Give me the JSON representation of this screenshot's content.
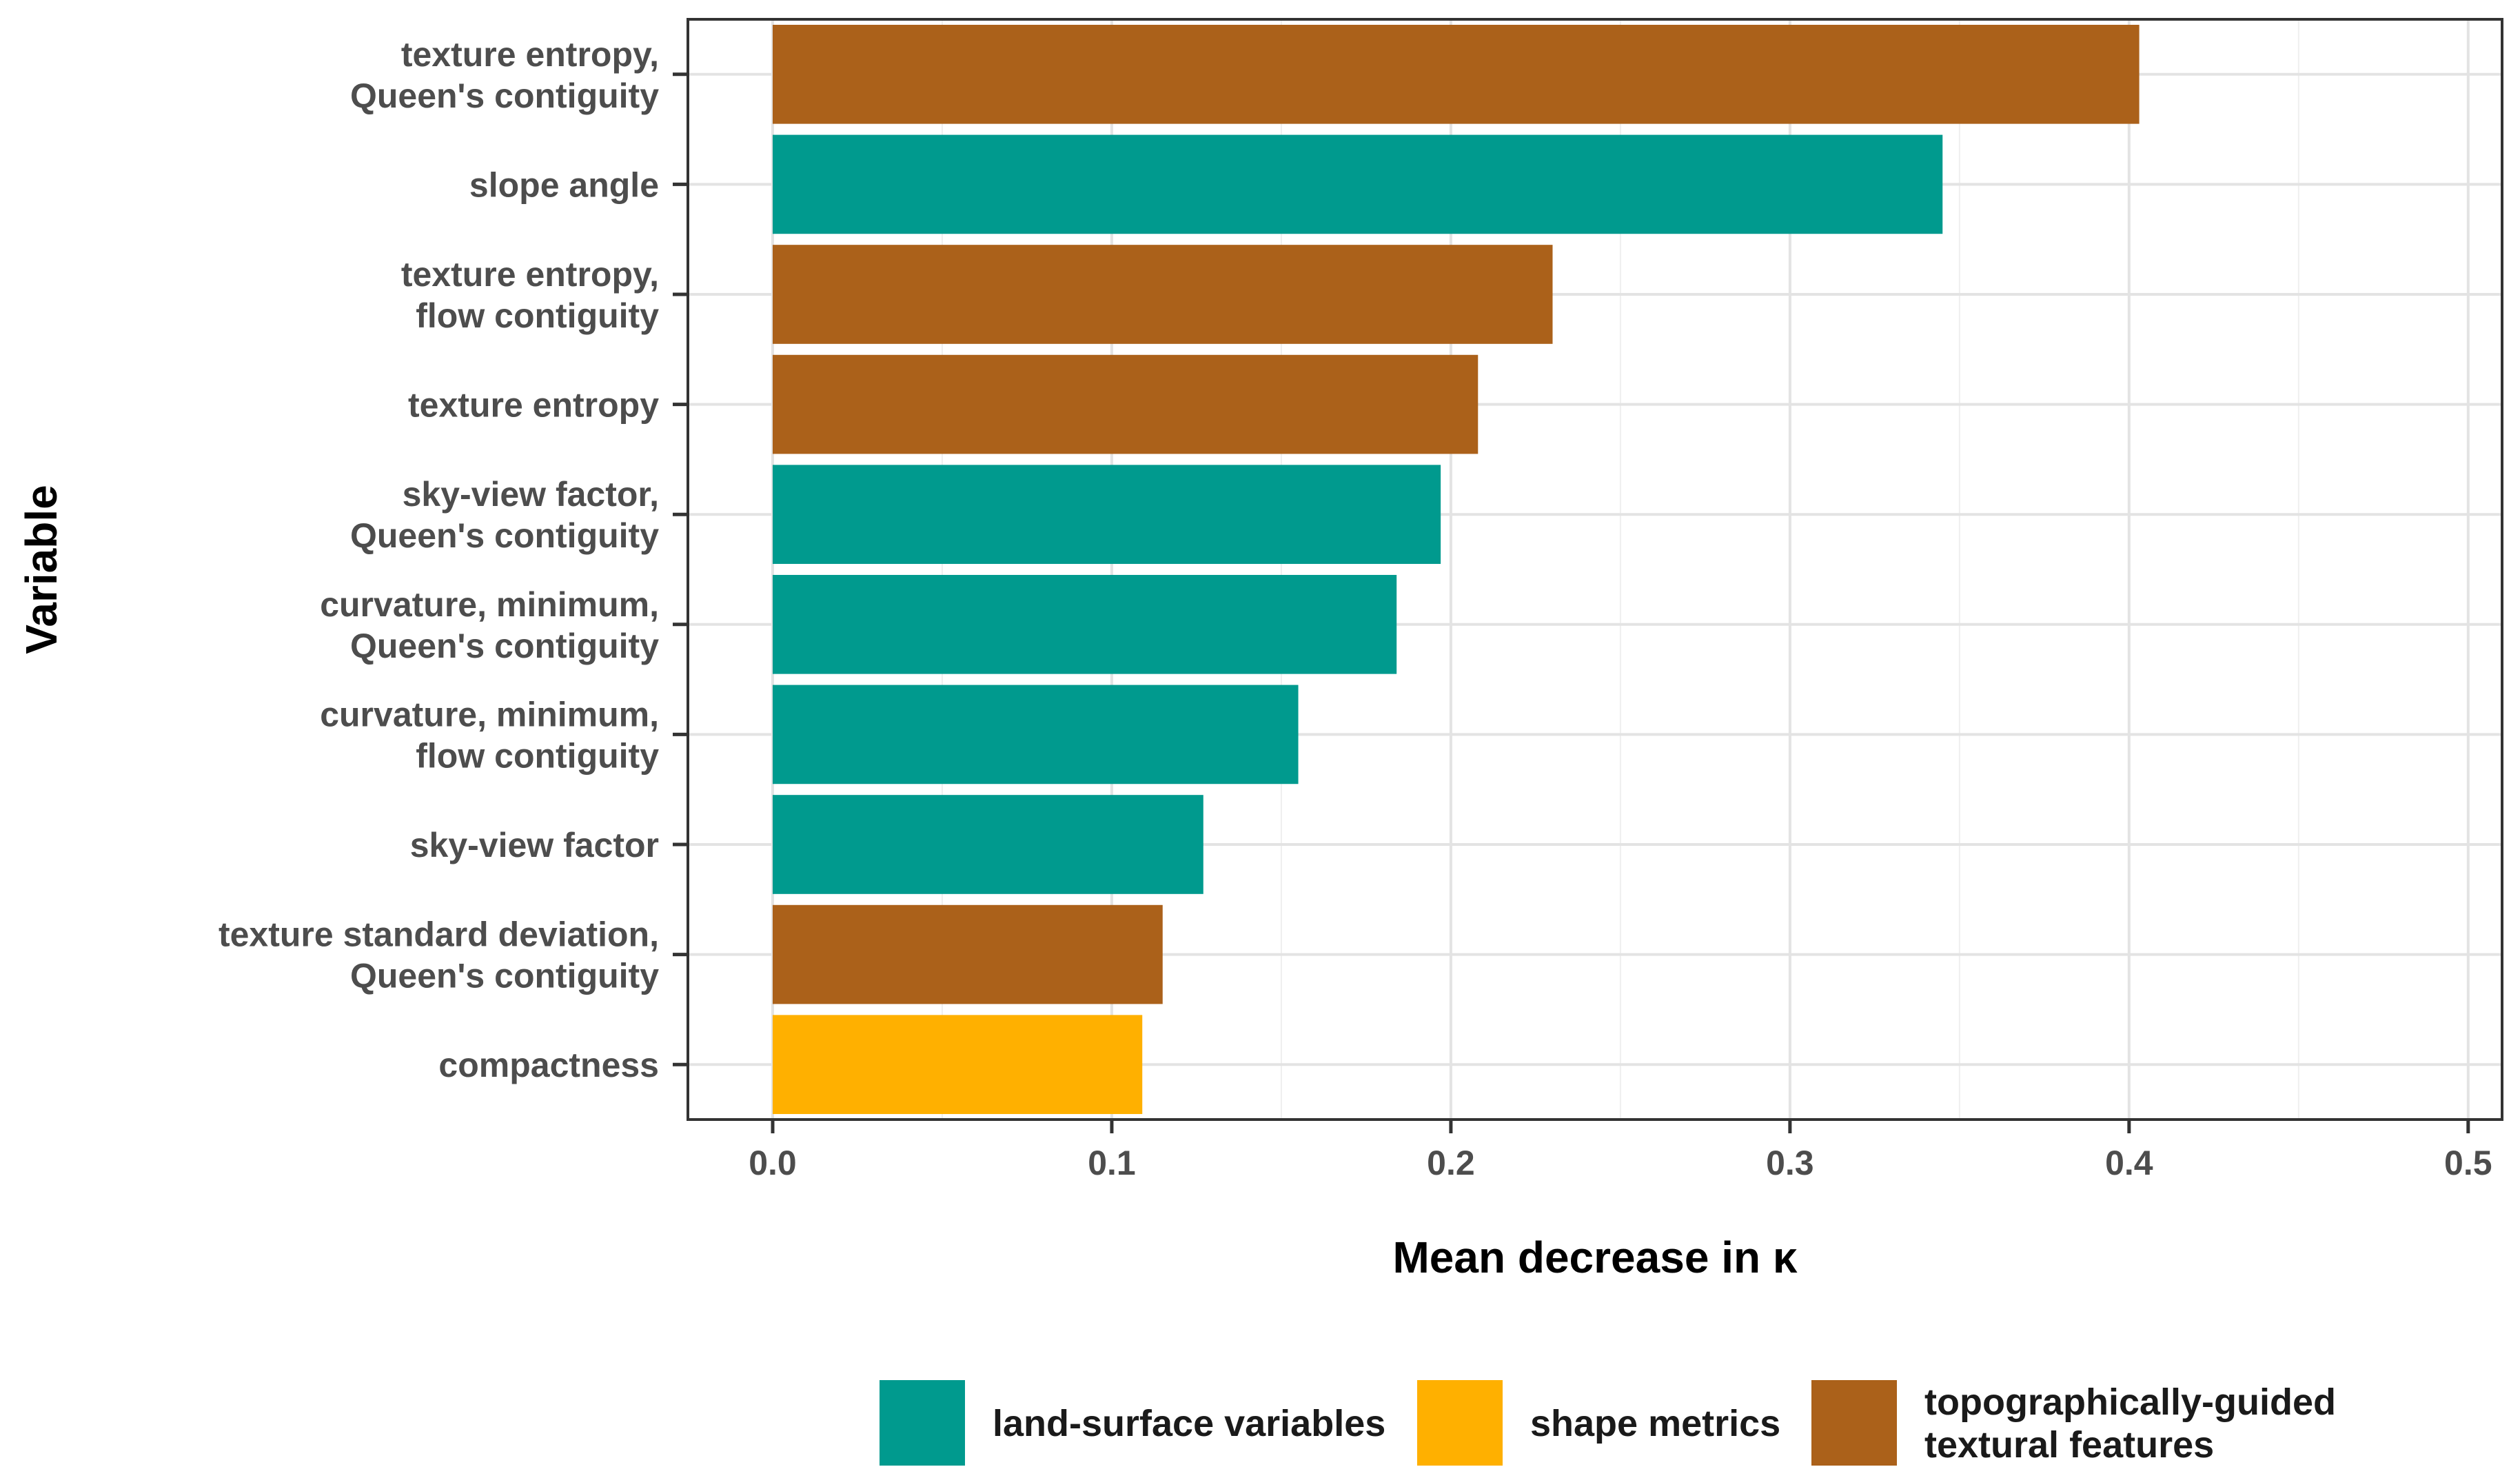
{
  "chart_data": {
    "type": "bar",
    "orientation": "horizontal",
    "title": "",
    "xlabel": "Mean decrease in κ",
    "ylabel": "Variable",
    "xlim": [
      -0.025,
      0.51
    ],
    "xticks": [
      "0.0",
      "0.1",
      "0.2",
      "0.3",
      "0.4",
      "0.5"
    ],
    "xtick_values": [
      0,
      0.1,
      0.2,
      0.3,
      0.4,
      0.5
    ],
    "grid": true,
    "legend_position": "bottom",
    "categories": [
      [
        "texture entropy,",
        "Queen's contiguity"
      ],
      [
        "slope angle"
      ],
      [
        "texture entropy,",
        "flow contiguity"
      ],
      [
        "texture entropy"
      ],
      [
        "sky-view factor,",
        "Queen's contiguity"
      ],
      [
        "curvature, minimum,",
        "Queen's contiguity"
      ],
      [
        "curvature, minimum,",
        "flow contiguity"
      ],
      [
        "sky-view factor"
      ],
      [
        "texture standard deviation,",
        "Queen's contiguity"
      ],
      [
        "compactness"
      ]
    ],
    "values": [
      0.403,
      0.345,
      0.23,
      0.208,
      0.197,
      0.184,
      0.155,
      0.127,
      0.115,
      0.109
    ],
    "groups": [
      2,
      0,
      2,
      2,
      0,
      0,
      0,
      0,
      2,
      1
    ],
    "legend": [
      {
        "lines": [
          "land-surface variables"
        ],
        "color": "#009A8E"
      },
      {
        "lines": [
          "shape metrics"
        ],
        "color": "#FFB000"
      },
      {
        "lines": [
          "topographically-guided",
          "textural features"
        ],
        "color": "#AB611A"
      }
    ]
  }
}
